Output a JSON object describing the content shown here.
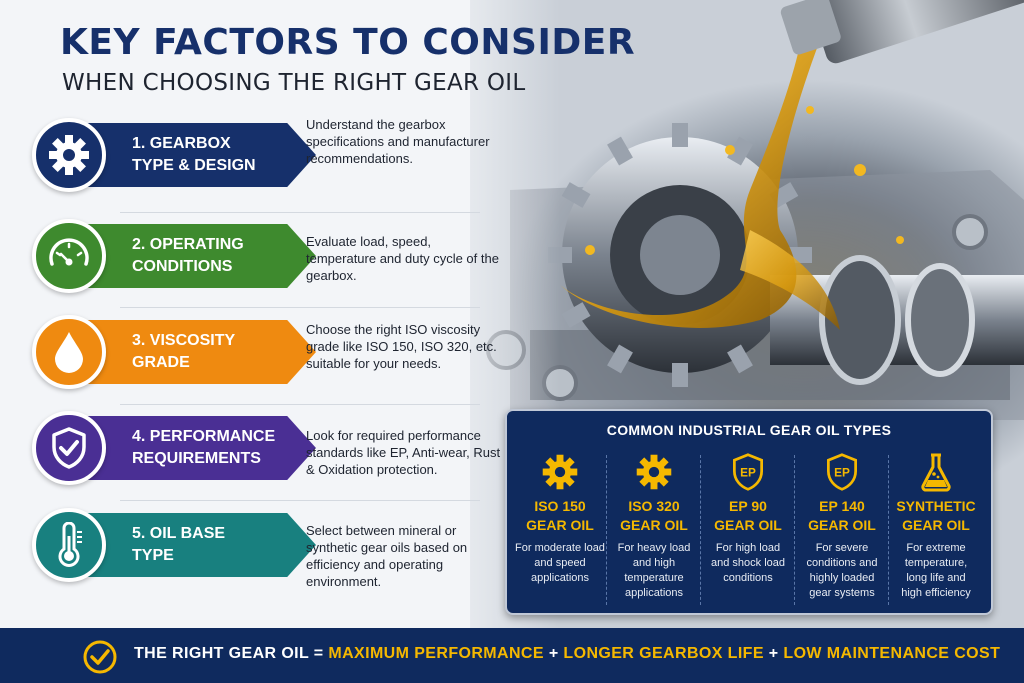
{
  "header": {
    "title": "KEY FACTORS TO CONSIDER",
    "subtitle": "WHEN CHOOSING THE RIGHT GEAR OIL"
  },
  "factors": [
    {
      "label": "1. GEARBOX\nTYPE & DESIGN",
      "description": "Understand the gearbox specifications and manufacturer recommendations.",
      "icon": "gear-icon",
      "color": "#16306b"
    },
    {
      "label": "2. OPERATING\nCONDITIONS",
      "description": "Evaluate load, speed, temperature and duty cycle of the gearbox.",
      "icon": "gauge-icon",
      "color": "#3e8a2e"
    },
    {
      "label": "3. VISCOSITY\nGRADE",
      "description": "Choose the right ISO viscosity grade like ISO 150,  ISO 320, etc. suitable for your needs.",
      "icon": "oil-drop-icon",
      "color": "#ef8a10"
    },
    {
      "label": "4. PERFORMANCE\nREQUIREMENTS",
      "description": "Look for required performance standards like EP, Anti-wear, Rust & Oxidation protection.",
      "icon": "shield-check-icon",
      "color": "#4a2f94"
    },
    {
      "label": "5. OIL BASE\nTYPE",
      "description": "Select between mineral or synthetic gear oils based on efficiency and operating environment.",
      "icon": "thermometer-icon",
      "color": "#18807f"
    }
  ],
  "oil_types": {
    "title": "COMMON INDUSTRIAL GEAR OIL TYPES",
    "items": [
      {
        "icon": "gear-icon",
        "badge": "",
        "name": "ISO 150\nGEAR OIL",
        "note": "For moderate load\nand speed\napplications"
      },
      {
        "icon": "gear-icon",
        "badge": "",
        "name": "ISO 320\nGEAR OIL",
        "note": "For heavy load\nand high\ntemperature\napplications"
      },
      {
        "icon": "ep-shield-icon",
        "badge": "EP",
        "name": "EP 90\nGEAR OIL",
        "note": "For high load\nand shock load\nconditions"
      },
      {
        "icon": "ep-shield-icon",
        "badge": "EP",
        "name": "EP 140\nGEAR OIL",
        "note": "For severe\nconditions and\nhighly loaded\ngear systems"
      },
      {
        "icon": "flask-icon",
        "badge": "",
        "name": "SYNTHETIC\nGEAR OIL",
        "note": "For extreme\ntemperature,\nlong life and\nhigh efficiency"
      }
    ]
  },
  "banner": {
    "lead": "THE RIGHT GEAR OIL =",
    "benefit_1": "MAXIMUM PERFORMANCE",
    "plus_1": "+",
    "benefit_2": "LONGER GEARBOX LIFE",
    "plus_2": "+",
    "benefit_3": "LOW MAINTENANCE COST"
  },
  "colors": {
    "navy": "#0f2a5e",
    "accent_yellow": "#f5b800",
    "title_blue": "#16306b"
  }
}
